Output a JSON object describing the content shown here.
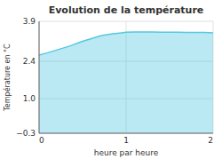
{
  "chart_data": {
    "type": "area",
    "title": "Evolution de la température",
    "x_label": "heure par heure",
    "y_label": "Température en °C",
    "color": "#55c8e0",
    "x": [
      0,
      0.05,
      0.1,
      0.15,
      0.2,
      0.25,
      0.3,
      0.35,
      0.4,
      0.45,
      0.5,
      0.55,
      0.6,
      0.65,
      0.7,
      0.75,
      0.8,
      0.85,
      0.9,
      0.95,
      1.0,
      1.1,
      1.2,
      1.3,
      1.4,
      1.5,
      1.6,
      1.7,
      1.8,
      1.9,
      2.0
    ],
    "values": [
      2.63,
      2.68,
      2.72,
      2.77,
      2.82,
      2.87,
      2.92,
      2.97,
      3.03,
      3.09,
      3.15,
      3.2,
      3.25,
      3.3,
      3.35,
      3.38,
      3.41,
      3.43,
      3.45,
      3.47,
      3.49,
      3.5,
      3.5,
      3.5,
      3.49,
      3.49,
      3.49,
      3.48,
      3.48,
      3.48,
      3.47
    ],
    "xlim": [
      0,
      2
    ],
    "ylim": [
      -0.3,
      3.9
    ],
    "xticks": [
      0,
      1,
      2
    ],
    "yticks": [
      {
        "value": -0.3,
        "label": "−0.3"
      },
      {
        "value": 1.0,
        "label": "1.0"
      },
      {
        "value": 2.4,
        "label": "2.4"
      },
      {
        "value": 3.9,
        "label": "3.9"
      }
    ],
    "grid": true
  }
}
